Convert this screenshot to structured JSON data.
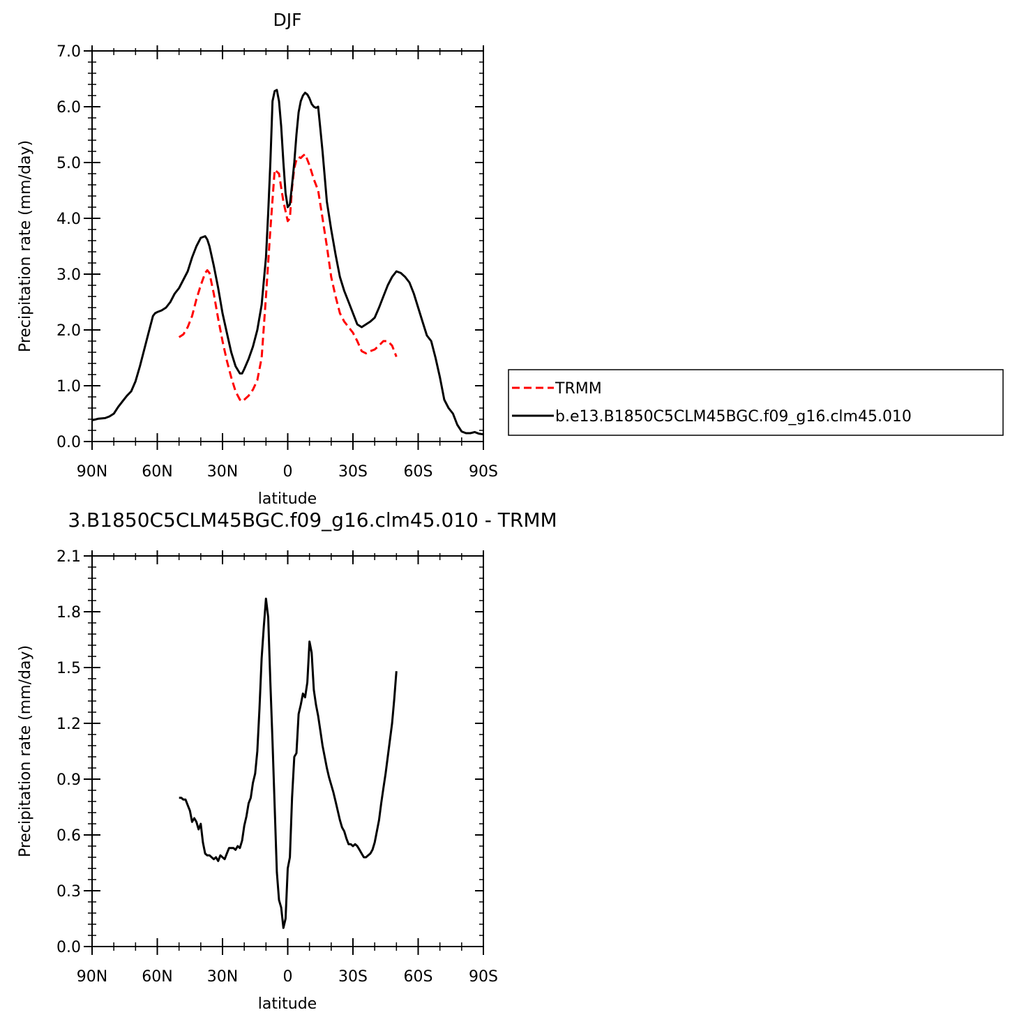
{
  "chart_data": [
    {
      "type": "line",
      "title": "DJF",
      "xlabel": "latitude",
      "ylabel": "Precipitation rate (mm/day)",
      "xlim": [
        -90,
        90
      ],
      "ylim": [
        0,
        7
      ],
      "x_tick_values": [
        -90,
        -60,
        -30,
        0,
        30,
        60,
        90
      ],
      "x_tick_labels": [
        "90N",
        "60N",
        "30N",
        "0",
        "30S",
        "60S",
        "90S"
      ],
      "y_tick_values": [
        0,
        1,
        2,
        3,
        4,
        5,
        6,
        7
      ],
      "y_tick_labels": [
        "0.0",
        "1.0",
        "2.0",
        "3.0",
        "4.0",
        "5.0",
        "6.0",
        "7.0"
      ],
      "legend": {
        "placement": "right"
      },
      "series": [
        {
          "name": "TRMM",
          "color": "#ff0000",
          "dash": "dashed",
          "x": [
            -50,
            -48,
            -46,
            -44,
            -42,
            -40,
            -38,
            -37,
            -36,
            -34,
            -32,
            -30,
            -28,
            -26,
            -24,
            -22,
            -21,
            -20,
            -18,
            -16,
            -14,
            -12,
            -10,
            -8,
            -6,
            -4,
            -2,
            0,
            1,
            2,
            3,
            4,
            5,
            6,
            7,
            8,
            9,
            10,
            12,
            14,
            16,
            18,
            20,
            22,
            24,
            26,
            28,
            30,
            32,
            34,
            36,
            38,
            40,
            42,
            44,
            46,
            48,
            50
          ],
          "y": [
            1.87,
            1.92,
            2.05,
            2.25,
            2.55,
            2.8,
            3.02,
            3.07,
            3.02,
            2.65,
            2.2,
            1.8,
            1.45,
            1.15,
            0.9,
            0.75,
            0.72,
            0.75,
            0.82,
            0.93,
            1.1,
            1.5,
            2.6,
            3.8,
            4.87,
            4.8,
            4.3,
            3.95,
            4.0,
            4.55,
            4.9,
            5.05,
            5.1,
            5.08,
            5.12,
            5.15,
            5.05,
            4.95,
            4.7,
            4.5,
            4.0,
            3.5,
            2.95,
            2.6,
            2.3,
            2.15,
            2.05,
            1.95,
            1.8,
            1.62,
            1.58,
            1.62,
            1.65,
            1.72,
            1.8,
            1.8,
            1.72,
            1.52
          ]
        },
        {
          "name": "b.e13.B1850C5CLM45BGC.f09_g16.clm45.010",
          "color": "#000000",
          "dash": "solid",
          "x": [
            -90,
            -87,
            -84,
            -82,
            -80,
            -78,
            -76,
            -74,
            -72,
            -70,
            -68,
            -66,
            -64,
            -62,
            -61,
            -60,
            -58,
            -56,
            -54,
            -52,
            -50,
            -48,
            -46,
            -44,
            -42,
            -40,
            -38,
            -37,
            -36,
            -34,
            -32,
            -30,
            -28,
            -26,
            -24,
            -22,
            -21,
            -20,
            -18,
            -16,
            -14,
            -12,
            -10,
            -9,
            -8,
            -7,
            -6,
            -5,
            -4,
            -3,
            -2,
            -1,
            0,
            1,
            2,
            3,
            4,
            5,
            6,
            7,
            8,
            9,
            10,
            11,
            12,
            13,
            14,
            15,
            16,
            18,
            20,
            22,
            24,
            26,
            28,
            30,
            32,
            34,
            36,
            38,
            40,
            42,
            44,
            46,
            48,
            50,
            52,
            54,
            56,
            58,
            60,
            62,
            64,
            66,
            68,
            70,
            72,
            74,
            76,
            78,
            80,
            82,
            84,
            86,
            88,
            90
          ],
          "y": [
            0.38,
            0.41,
            0.42,
            0.45,
            0.5,
            0.62,
            0.72,
            0.82,
            0.9,
            1.08,
            1.35,
            1.65,
            1.95,
            2.25,
            2.3,
            2.32,
            2.35,
            2.4,
            2.5,
            2.65,
            2.75,
            2.9,
            3.05,
            3.3,
            3.5,
            3.65,
            3.68,
            3.62,
            3.5,
            3.15,
            2.75,
            2.3,
            1.95,
            1.6,
            1.35,
            1.22,
            1.22,
            1.3,
            1.48,
            1.7,
            2.0,
            2.45,
            3.3,
            4.1,
            5.0,
            6.1,
            6.28,
            6.3,
            6.1,
            5.65,
            5.0,
            4.45,
            4.2,
            4.25,
            4.6,
            5.0,
            5.5,
            5.9,
            6.1,
            6.2,
            6.25,
            6.22,
            6.15,
            6.05,
            6.0,
            5.98,
            6.0,
            5.6,
            5.2,
            4.3,
            3.8,
            3.35,
            2.95,
            2.7,
            2.5,
            2.3,
            2.1,
            2.05,
            2.1,
            2.15,
            2.22,
            2.4,
            2.6,
            2.8,
            2.95,
            3.05,
            3.02,
            2.95,
            2.85,
            2.65,
            2.4,
            2.15,
            1.9,
            1.8,
            1.5,
            1.15,
            0.75,
            0.6,
            0.5,
            0.3,
            0.18,
            0.15,
            0.15,
            0.17,
            0.14,
            0.13
          ]
        }
      ]
    },
    {
      "type": "line",
      "title": "3.B1850C5CLM45BGC.f09_g16.clm45.010 - TRMM",
      "xlabel": "latitude",
      "ylabel": "Precipitation rate (mm/day)",
      "xlim": [
        -90,
        90
      ],
      "ylim": [
        0,
        2.1
      ],
      "x_tick_values": [
        -90,
        -60,
        -30,
        0,
        30,
        60,
        90
      ],
      "x_tick_labels": [
        "90N",
        "60N",
        "30N",
        "0",
        "30S",
        "60S",
        "90S"
      ],
      "y_tick_values": [
        0,
        0.3,
        0.6,
        0.9,
        1.2,
        1.5,
        1.8,
        2.1
      ],
      "y_tick_labels": [
        "0.0",
        "0.3",
        "0.6",
        "0.9",
        "1.2",
        "1.5",
        "1.8",
        "2.1"
      ],
      "series": [
        {
          "color": "#000000",
          "dash": "solid",
          "x": [
            -50,
            -49,
            -48,
            -47,
            -46,
            -45,
            -44,
            -43,
            -42,
            -41,
            -40,
            -39,
            -38,
            -37,
            -36,
            -35,
            -34,
            -33,
            -32,
            -31,
            -30,
            -29,
            -28,
            -27,
            -26,
            -25,
            -24,
            -23,
            -22,
            -21,
            -20,
            -19,
            -18,
            -17,
            -16,
            -15,
            -14,
            -13,
            -12,
            -11,
            -10,
            -9,
            -8,
            -7,
            -6,
            -5,
            -4,
            -3,
            -2,
            -1,
            0,
            1,
            2,
            3,
            4,
            5,
            6,
            7,
            8,
            9,
            10,
            11,
            12,
            13,
            14,
            15,
            16,
            17,
            18,
            19,
            20,
            21,
            22,
            23,
            24,
            25,
            26,
            27,
            28,
            29,
            30,
            31,
            32,
            33,
            34,
            35,
            36,
            37,
            38,
            39,
            40,
            41,
            42,
            43,
            44,
            45,
            46,
            47,
            48,
            49,
            50
          ],
          "y": [
            0.8,
            0.8,
            0.79,
            0.79,
            0.76,
            0.73,
            0.67,
            0.69,
            0.67,
            0.63,
            0.66,
            0.56,
            0.5,
            0.49,
            0.49,
            0.48,
            0.47,
            0.48,
            0.46,
            0.49,
            0.48,
            0.47,
            0.5,
            0.53,
            0.53,
            0.53,
            0.52,
            0.54,
            0.53,
            0.57,
            0.65,
            0.7,
            0.77,
            0.8,
            0.88,
            0.93,
            1.05,
            1.28,
            1.55,
            1.72,
            1.87,
            1.77,
            1.42,
            1.1,
            0.75,
            0.4,
            0.25,
            0.21,
            0.1,
            0.15,
            0.42,
            0.48,
            0.8,
            1.02,
            1.04,
            1.25,
            1.3,
            1.36,
            1.34,
            1.42,
            1.64,
            1.58,
            1.38,
            1.3,
            1.24,
            1.16,
            1.08,
            1.02,
            0.96,
            0.91,
            0.87,
            0.83,
            0.78,
            0.73,
            0.68,
            0.64,
            0.62,
            0.58,
            0.55,
            0.55,
            0.54,
            0.55,
            0.54,
            0.52,
            0.5,
            0.48,
            0.48,
            0.49,
            0.5,
            0.52,
            0.56,
            0.62,
            0.68,
            0.77,
            0.85,
            0.93,
            1.02,
            1.11,
            1.2,
            1.33,
            1.48
          ]
        }
      ]
    }
  ]
}
